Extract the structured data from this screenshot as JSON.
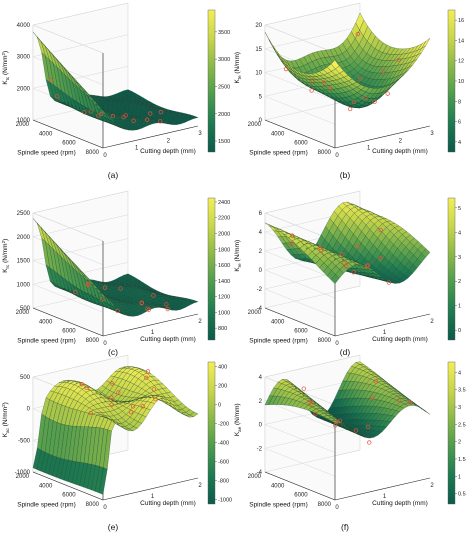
{
  "chart_data": [
    {
      "type": "surface3d",
      "caption": "(a)",
      "zlabel_main": "K",
      "zlabel_sub": "tc",
      "zlabel_unit": " (N/mm",
      "zlabel_sup": "2",
      "zlabel_end": ")",
      "xlabel": "Cutting depth (mm)",
      "ylabel": "Spindle speed (rpm)",
      "x_ticks": [
        "0",
        "1",
        "2",
        "3"
      ],
      "y_ticks": [
        "2000",
        "4000",
        "6000",
        "8000"
      ],
      "z_ticks": [
        "1000",
        "2000",
        "3000",
        "4000"
      ],
      "colorbar_ticks": [
        "1500",
        "2000",
        "2500",
        "3000",
        "3500"
      ],
      "x_range": [
        0,
        3
      ],
      "y_range": [
        2000,
        8000
      ],
      "z_range": [
        1000,
        4000
      ],
      "c_range": [
        1300,
        3900
      ],
      "surface_shape": "cliff",
      "surface_params": {
        "base": 1200,
        "peak": 3800,
        "edge_x": 0.75,
        "slope": 300,
        "wave": 70
      }
    },
    {
      "type": "surface3d",
      "caption": "(b)",
      "zlabel_main": "K",
      "zlabel_sub": "te",
      "zlabel_unit": " (N/mm)",
      "zlabel_sup": "",
      "zlabel_end": "",
      "xlabel": "Cutting depth (mm)",
      "ylabel": "Spindle speed (rpm)",
      "x_ticks": [
        "0",
        "1",
        "2",
        "3"
      ],
      "y_ticks": [
        "2000",
        "4000",
        "6000",
        "8000"
      ],
      "z_ticks": [
        "0",
        "5",
        "10",
        "15",
        "20"
      ],
      "colorbar_ticks": [
        "4",
        "6",
        "8",
        "10",
        "12",
        "14",
        "16"
      ],
      "x_range": [
        0,
        3
      ],
      "y_range": [
        2000,
        8000
      ],
      "z_range": [
        0,
        20
      ],
      "c_range": [
        3,
        17
      ],
      "surface_shape": "saddle",
      "surface_params": {
        "base": 7,
        "amp": 9
      }
    },
    {
      "type": "surface3d",
      "caption": "(c)",
      "zlabel_main": "K",
      "zlabel_sub": "rc",
      "zlabel_unit": " (N/mm",
      "zlabel_sup": "2",
      "zlabel_end": ")",
      "xlabel": "Cutting depth (mm)",
      "ylabel": "Spindle speed (rpm)",
      "x_ticks": [
        "0",
        "1",
        "2"
      ],
      "y_ticks": [
        "2000",
        "4000",
        "6000",
        "8000"
      ],
      "z_ticks": [
        "500",
        "1000",
        "1500",
        "2000",
        "2500"
      ],
      "colorbar_ticks": [
        "800",
        "1000",
        "1200",
        "1400",
        "1600",
        "1800",
        "2000",
        "2200",
        "2400"
      ],
      "x_range": [
        0,
        2.5
      ],
      "y_range": [
        2000,
        8000
      ],
      "z_range": [
        500,
        2500
      ],
      "c_range": [
        650,
        2450
      ],
      "surface_shape": "cliff",
      "surface_params": {
        "base": 700,
        "peak": 2400,
        "edge_x": 0.65,
        "slope": 180,
        "wave": 60
      }
    },
    {
      "type": "surface3d",
      "caption": "(d)",
      "zlabel_main": "K",
      "zlabel_sub": "re",
      "zlabel_unit": " (N/mm)",
      "zlabel_sup": "",
      "zlabel_end": "",
      "xlabel": "Cutting depth (mm)",
      "ylabel": "Spindle speed (rpm)",
      "x_ticks": [
        "0",
        "1",
        "2"
      ],
      "y_ticks": [
        "2000",
        "4000",
        "6000",
        "8000"
      ],
      "z_ticks": [
        "-4",
        "-2",
        "0",
        "2",
        "4",
        "6"
      ],
      "colorbar_ticks": [
        "0",
        "1",
        "2",
        "3",
        "4",
        "5"
      ],
      "x_range": [
        0,
        2.5
      ],
      "y_range": [
        2000,
        8000
      ],
      "z_range": [
        -4,
        6
      ],
      "c_range": [
        -0.4,
        5.4
      ],
      "surface_shape": "ridge",
      "surface_params": {
        "base": 1.5,
        "amp": 2.5
      }
    },
    {
      "type": "surface3d",
      "caption": "(e)",
      "zlabel_main": "K",
      "zlabel_sub": "ac",
      "zlabel_unit": " (N/mm",
      "zlabel_sup": "2",
      "zlabel_end": ")",
      "xlabel": "Cutting depth (mm)",
      "ylabel": "Spindle speed (rpm)",
      "x_ticks": [
        "0",
        "1",
        "2"
      ],
      "y_ticks": [
        "2000",
        "4000",
        "6000",
        "8000"
      ],
      "z_ticks": [
        "-1000",
        "-500",
        "0",
        "500"
      ],
      "colorbar_ticks": [
        "-1000",
        "-800",
        "-600",
        "-400",
        "-200",
        "0",
        "200",
        "400"
      ],
      "x_range": [
        0,
        2.5
      ],
      "y_range": [
        2000,
        8000
      ],
      "z_range": [
        -1000,
        500
      ],
      "c_range": [
        -1050,
        450
      ],
      "surface_shape": "plateau",
      "surface_params": {
        "low": -1000,
        "high": 400
      }
    },
    {
      "type": "surface3d",
      "caption": "(f)",
      "zlabel_main": "K",
      "zlabel_sub": "ae",
      "zlabel_unit": " (N/mm)",
      "zlabel_sup": "",
      "zlabel_end": "",
      "xlabel": "Cutting depth (mm)",
      "ylabel": "Spindle speed (rpm)",
      "x_ticks": [
        "0",
        "1",
        "2"
      ],
      "y_ticks": [
        "2000",
        "4000",
        "6000",
        "8000"
      ],
      "z_ticks": [
        "-4",
        "-2",
        "0",
        "2",
        "4"
      ],
      "colorbar_ticks": [
        "0.5",
        "1",
        "1.5",
        "2",
        "2.5",
        "3",
        "3.5",
        "4"
      ],
      "x_range": [
        0,
        2.5
      ],
      "y_range": [
        2000,
        8000
      ],
      "z_range": [
        -4,
        4
      ],
      "c_range": [
        0.2,
        4.3
      ],
      "surface_shape": "wave",
      "surface_params": {
        "base": 1.5,
        "amp": 2.2
      }
    }
  ],
  "colormap": [
    "#0b5a4a",
    "#1e7a50",
    "#4c9a4e",
    "#8ab84a",
    "#c8d64a",
    "#f2ee58"
  ],
  "marker_color": "#e8503a"
}
